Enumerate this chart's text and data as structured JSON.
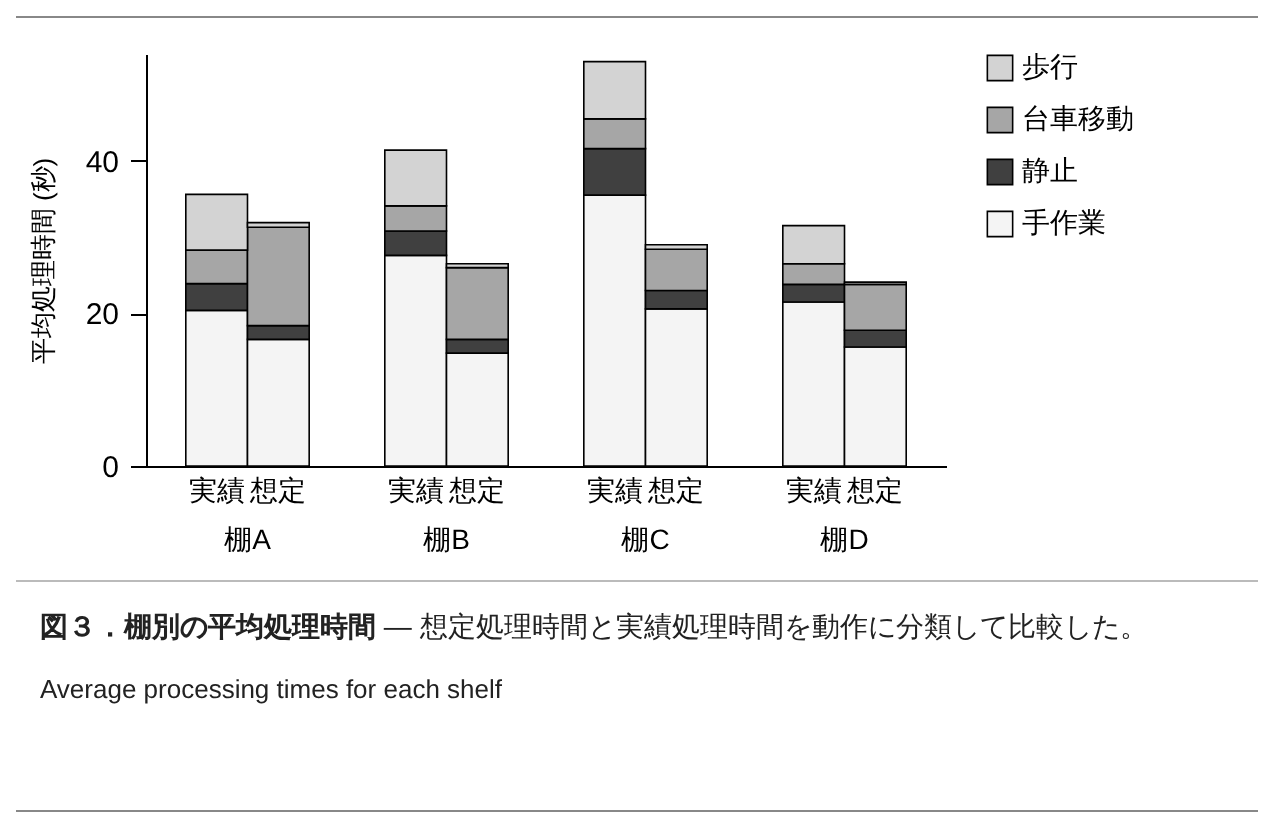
{
  "chart_data": {
    "type": "bar",
    "stacked": true,
    "title": "図３．棚別の平均処理時間",
    "ylabel": "平均処理時間 (秒)",
    "categories": [
      "実績",
      "想定",
      "実績",
      "想定",
      "実績",
      "想定",
      "実績",
      "想定"
    ],
    "annotations": [
      "棚A",
      "棚B",
      "棚C",
      "棚D",
      "— 想定処理時間と実績処理時間を動作に分類して比較した。",
      "Average processing times for each shelf"
    ],
    "series": [
      {
        "name": "手作業",
        "color": "#f4f4f4",
        "values": [
          20.4,
          16.6,
          27.6,
          14.8,
          35.5,
          20.6,
          21.5,
          15.6
        ]
      },
      {
        "name": "静止",
        "color": "#404040",
        "values": [
          3.5,
          1.8,
          3.2,
          1.8,
          6.1,
          2.4,
          2.3,
          2.2
        ]
      },
      {
        "name": "台車移動",
        "color": "#a6a6a6",
        "values": [
          4.4,
          12.9,
          3.3,
          9.4,
          3.9,
          5.4,
          2.7,
          6.0
        ]
      },
      {
        "name": "歩行",
        "color": "#d3d3d3",
        "values": [
          7.3,
          0.6,
          7.3,
          0.5,
          7.5,
          0.6,
          5.0,
          0.3
        ]
      }
    ],
    "ylim": [
      0,
      54
    ],
    "yticks": [
      0,
      20,
      40
    ],
    "grid": false,
    "legend": "right"
  }
}
